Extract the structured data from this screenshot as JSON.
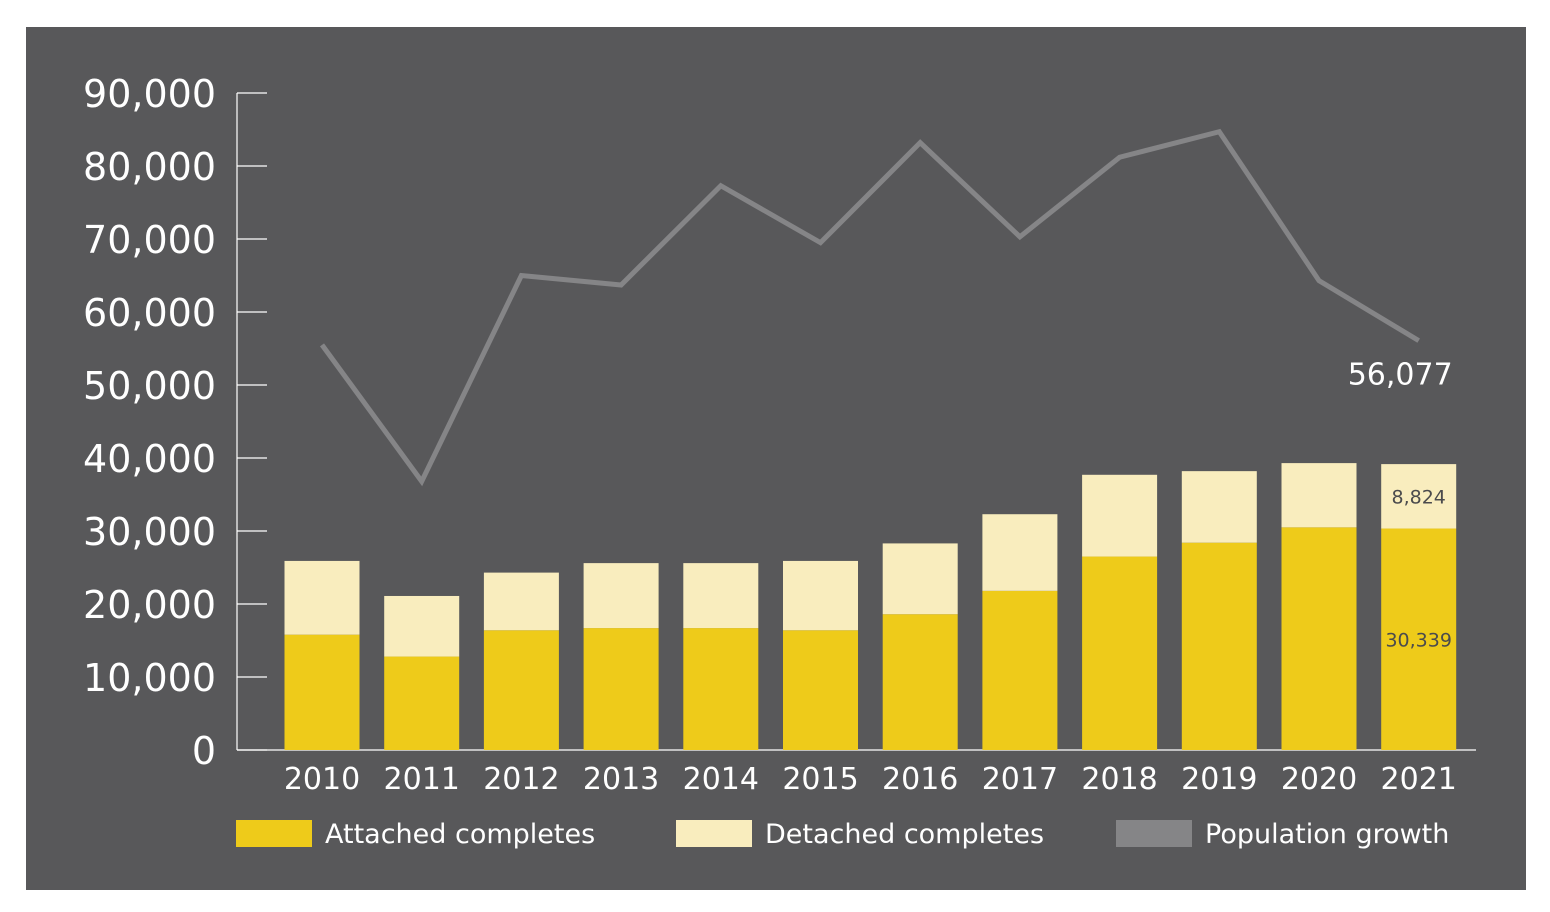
{
  "chart_data": {
    "type": "bar",
    "stacked": true,
    "categories": [
      "2010",
      "2011",
      "2012",
      "2013",
      "2014",
      "2015",
      "2016",
      "2017",
      "2018",
      "2019",
      "2020",
      "2021"
    ],
    "series": [
      {
        "name": "Attached completes",
        "kind": "bar",
        "color": "#eecb1a",
        "values": [
          15800,
          12800,
          16400,
          16700,
          16700,
          16400,
          18600,
          21800,
          26500,
          28400,
          30500,
          30339
        ]
      },
      {
        "name": "Detached completes",
        "kind": "bar",
        "color": "#f9edbe",
        "values": [
          10100,
          8300,
          7900,
          8900,
          8900,
          9500,
          9700,
          10500,
          11200,
          9800,
          8800,
          8824
        ]
      },
      {
        "name": "Population growth",
        "kind": "line",
        "color": "#858587",
        "values": [
          55500,
          36800,
          65000,
          63700,
          77300,
          69500,
          83200,
          70300,
          81200,
          84700,
          64300,
          56077
        ]
      }
    ],
    "ylim": [
      0,
      90000
    ],
    "yticks": [
      "0",
      "10,000",
      "20,000",
      "30,000",
      "40,000",
      "50,000",
      "60,000",
      "70,000",
      "80,000",
      "90,000"
    ],
    "annotations": {
      "line_last": "56,077",
      "detached_last": "8,824",
      "attached_last": "30,339"
    },
    "legend_position": "bottom"
  }
}
